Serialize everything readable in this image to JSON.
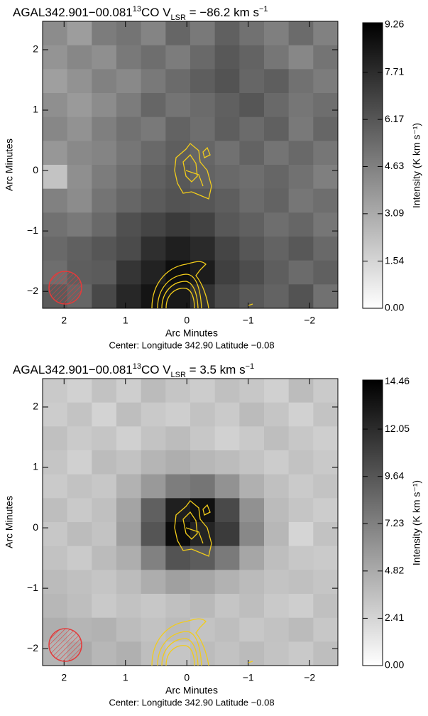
{
  "chart_data": [
    {
      "type": "heatmap",
      "title": {
        "main": "AGAL342.901−00.081",
        "sup1": "13",
        "mid": "CO V",
        "sub": "LSR",
        "tail": " = −86.2 km s",
        "sup2": "−1"
      },
      "xlabel": "Arc Minutes",
      "ylabel": "Arc Minutes",
      "subtitle": "Center:  Longitude 342.90 Latitude −0.08",
      "xlim": [
        2.35,
        -2.46
      ],
      "ylim": [
        -2.28,
        2.47
      ],
      "xticks": [
        2,
        1,
        0,
        {
          "value": -1,
          "label": "−1"
        },
        {
          "value": -2,
          "label": "−2"
        }
      ],
      "yticks": [
        {
          "value": -2,
          "label": "−2"
        },
        {
          "value": -1,
          "label": "−1"
        },
        0,
        1,
        2
      ],
      "colormap": "gray_r",
      "colorbar": {
        "label": "Intensity (K km s⁻¹)",
        "lim": [
          0,
          9.33
        ],
        "ticks": [
          {
            "value": 0,
            "label": "0.00"
          },
          1.54,
          3.09,
          4.63,
          6.17,
          7.71,
          9.26
        ]
      },
      "z": [
        [
          4.2,
          3.6,
          4.8,
          5.1,
          4.5,
          5.6,
          4.9,
          5.8,
          5.2,
          4.7,
          5.4,
          4.6
        ],
        [
          3.9,
          4.4,
          4.1,
          4.9,
          5.3,
          4.8,
          5.5,
          6.1,
          5.7,
          5.0,
          4.4,
          5.1
        ],
        [
          3.5,
          4.0,
          4.6,
          4.3,
          4.9,
          5.4,
          5.9,
          6.3,
          5.6,
          5.9,
          5.2,
          4.8
        ],
        [
          4.1,
          3.7,
          4.2,
          4.8,
          5.6,
          5.1,
          5.4,
          5.8,
          6.2,
          5.5,
          5.0,
          5.3
        ],
        [
          4.4,
          4.0,
          4.7,
          5.2,
          4.9,
          5.7,
          5.3,
          5.9,
          5.4,
          5.8,
          4.9,
          5.6
        ],
        [
          3.8,
          4.3,
          4.5,
          5.0,
          5.5,
          5.9,
          5.6,
          5.2,
          5.7,
          5.1,
          5.5,
          5.0
        ],
        [
          2.2,
          4.1,
          4.8,
          5.3,
          5.8,
          6.1,
          5.7,
          5.5,
          5.3,
          5.6,
          5.2,
          4.7
        ],
        [
          4.6,
          4.2,
          5.1,
          5.6,
          6.0,
          6.3,
          6.2,
          5.9,
          5.4,
          5.7,
          5.0,
          5.3
        ],
        [
          5.2,
          4.9,
          5.5,
          6.4,
          6.8,
          7.2,
          6.9,
          6.1,
          5.8,
          5.3,
          5.6,
          5.0
        ],
        [
          5.5,
          5.8,
          6.2,
          6.6,
          7.6,
          8.2,
          7.8,
          6.8,
          6.2,
          5.7,
          6.1,
          5.5
        ],
        [
          5.3,
          5.9,
          6.0,
          7.4,
          8.1,
          8.8,
          8.3,
          7.0,
          6.5,
          5.9,
          5.4,
          5.8
        ],
        [
          6.0,
          5.6,
          6.7,
          7.9,
          8.6,
          8.4,
          7.5,
          6.6,
          6.1,
          5.7,
          6.3,
          5.2
        ]
      ]
    },
    {
      "type": "heatmap",
      "title": {
        "main": "AGAL342.901−00.081",
        "sup1": "13",
        "mid": "CO V",
        "sub": "LSR",
        "tail": " = 3.5 km s",
        "sup2": "−1"
      },
      "xlabel": "Arc Minutes",
      "ylabel": "Arc Minutes",
      "subtitle": "Center:  Longitude 342.90 Latitude −0.08",
      "xlim": [
        2.35,
        -2.46
      ],
      "ylim": [
        -2.28,
        2.47
      ],
      "xticks": [
        2,
        1,
        0,
        {
          "value": -1,
          "label": "−1"
        },
        {
          "value": -2,
          "label": "−2"
        }
      ],
      "yticks": [
        {
          "value": -2,
          "label": "−2"
        },
        {
          "value": -1,
          "label": "−1"
        },
        0,
        1,
        2
      ],
      "colormap": "gray_r",
      "colorbar": {
        "label": "Intensity (K km s⁻¹)",
        "lim": [
          0,
          14.55
        ],
        "ticks": [
          {
            "value": 0,
            "label": "0.00"
          },
          2.41,
          4.82,
          7.23,
          9.64,
          12.05,
          14.46
        ]
      },
      "z": [
        [
          3.1,
          2.6,
          3.5,
          2.8,
          3.9,
          3.3,
          2.9,
          3.6,
          3.2,
          2.7,
          3.8,
          3.0
        ],
        [
          2.9,
          3.4,
          2.5,
          3.7,
          3.1,
          2.8,
          3.5,
          3.0,
          3.9,
          3.3,
          2.6,
          3.4
        ],
        [
          3.6,
          3.0,
          3.3,
          2.7,
          3.4,
          3.8,
          3.2,
          2.6,
          3.1,
          3.7,
          3.2,
          2.8
        ],
        [
          3.3,
          2.7,
          3.8,
          3.5,
          4.2,
          4.6,
          4.1,
          3.8,
          3.4,
          2.9,
          3.5,
          3.1
        ],
        [
          3.0,
          3.5,
          3.2,
          4.4,
          5.8,
          7.4,
          7.9,
          6.2,
          4.5,
          3.6,
          3.0,
          3.4
        ],
        [
          3.7,
          3.1,
          3.6,
          5.2,
          9.1,
          12.8,
          13.6,
          10.4,
          6.3,
          3.9,
          3.3,
          2.9
        ],
        [
          3.2,
          3.8,
          3.4,
          5.5,
          9.7,
          13.9,
          12.5,
          11.2,
          6.8,
          4.1,
          2.4,
          3.5
        ],
        [
          3.5,
          3.0,
          3.9,
          4.6,
          7.2,
          9.8,
          9.3,
          7.6,
          5.1,
          3.7,
          3.2,
          3.0
        ],
        [
          3.9,
          3.6,
          3.3,
          3.8,
          4.7,
          5.4,
          5.0,
          4.4,
          3.9,
          3.4,
          3.6,
          3.3
        ],
        [
          4.1,
          3.7,
          3.1,
          3.5,
          3.2,
          3.6,
          4.0,
          3.3,
          3.7,
          3.1,
          2.8,
          3.6
        ],
        [
          4.6,
          4.2,
          4.4,
          3.8,
          3.5,
          3.9,
          3.4,
          3.7,
          3.2,
          3.5,
          3.9,
          3.2
        ],
        [
          4.3,
          4.8,
          4.1,
          4.5,
          3.7,
          3.3,
          3.8,
          3.5,
          3.9,
          3.4,
          3.1,
          3.7
        ]
      ]
    }
  ]
}
